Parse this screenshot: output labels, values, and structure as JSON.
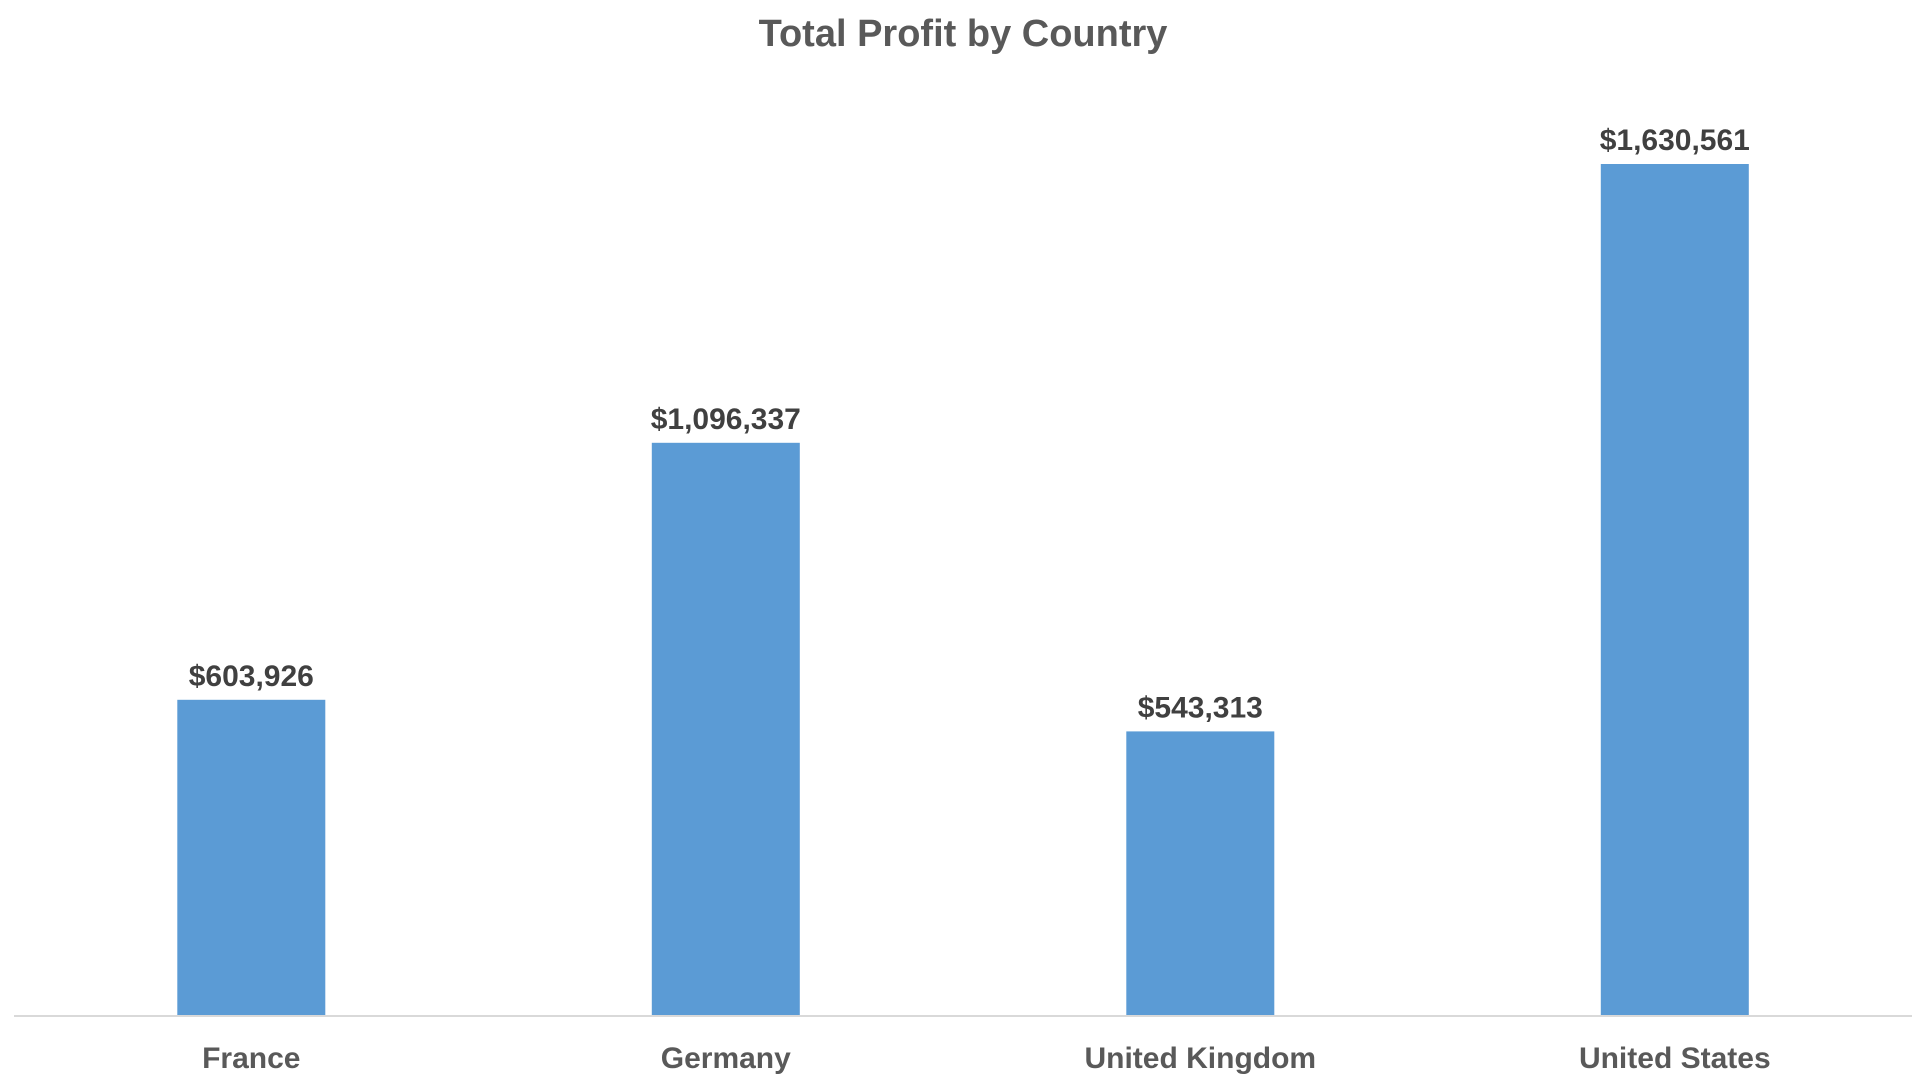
{
  "chart_data": {
    "type": "bar",
    "title": "Total Profit by Country",
    "categories": [
      "France",
      "Germany",
      "United Kingdom",
      "United States"
    ],
    "values": [
      603926,
      1096337,
      543313,
      1630561
    ],
    "data_labels": [
      "$603,926",
      "$1,096,337",
      "$543,313",
      "$1,630,561"
    ],
    "xlabel": "",
    "ylabel": "",
    "ylim": [
      0,
      1800000
    ],
    "grid": false,
    "legend": "none",
    "colors": {
      "bar": "#5B9BD5",
      "axis_line": "#D9D9D9",
      "title": "#595959",
      "data_label": "#404040",
      "tick_label": "#595959"
    }
  }
}
